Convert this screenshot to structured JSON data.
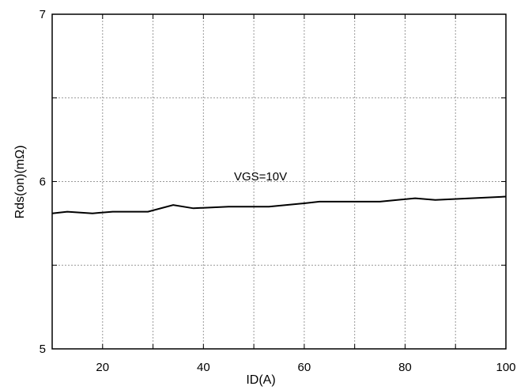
{
  "chart_data": {
    "type": "line",
    "title": "",
    "xlabel": "ID(A)",
    "ylabel": "Rds(on)(mΩ)",
    "xlim": [
      10,
      100
    ],
    "ylim": [
      5,
      7
    ],
    "x_ticks": [
      20,
      40,
      60,
      80,
      100
    ],
    "y_ticks": [
      5,
      6,
      7
    ],
    "x_grid": [
      20,
      30,
      40,
      50,
      60,
      70,
      80,
      90
    ],
    "y_grid": [
      5.5,
      6.0,
      6.5
    ],
    "grid": true,
    "annotation": "VGS=10V",
    "series": [
      {
        "x": [
          10,
          13,
          18,
          22,
          29,
          34,
          38,
          45,
          53,
          60,
          63,
          75,
          82,
          86,
          100
        ],
        "y": [
          5.81,
          5.82,
          5.81,
          5.82,
          5.82,
          5.86,
          5.84,
          5.85,
          5.85,
          5.87,
          5.88,
          5.88,
          5.9,
          5.89,
          5.91
        ],
        "color": "#000000"
      }
    ]
  }
}
